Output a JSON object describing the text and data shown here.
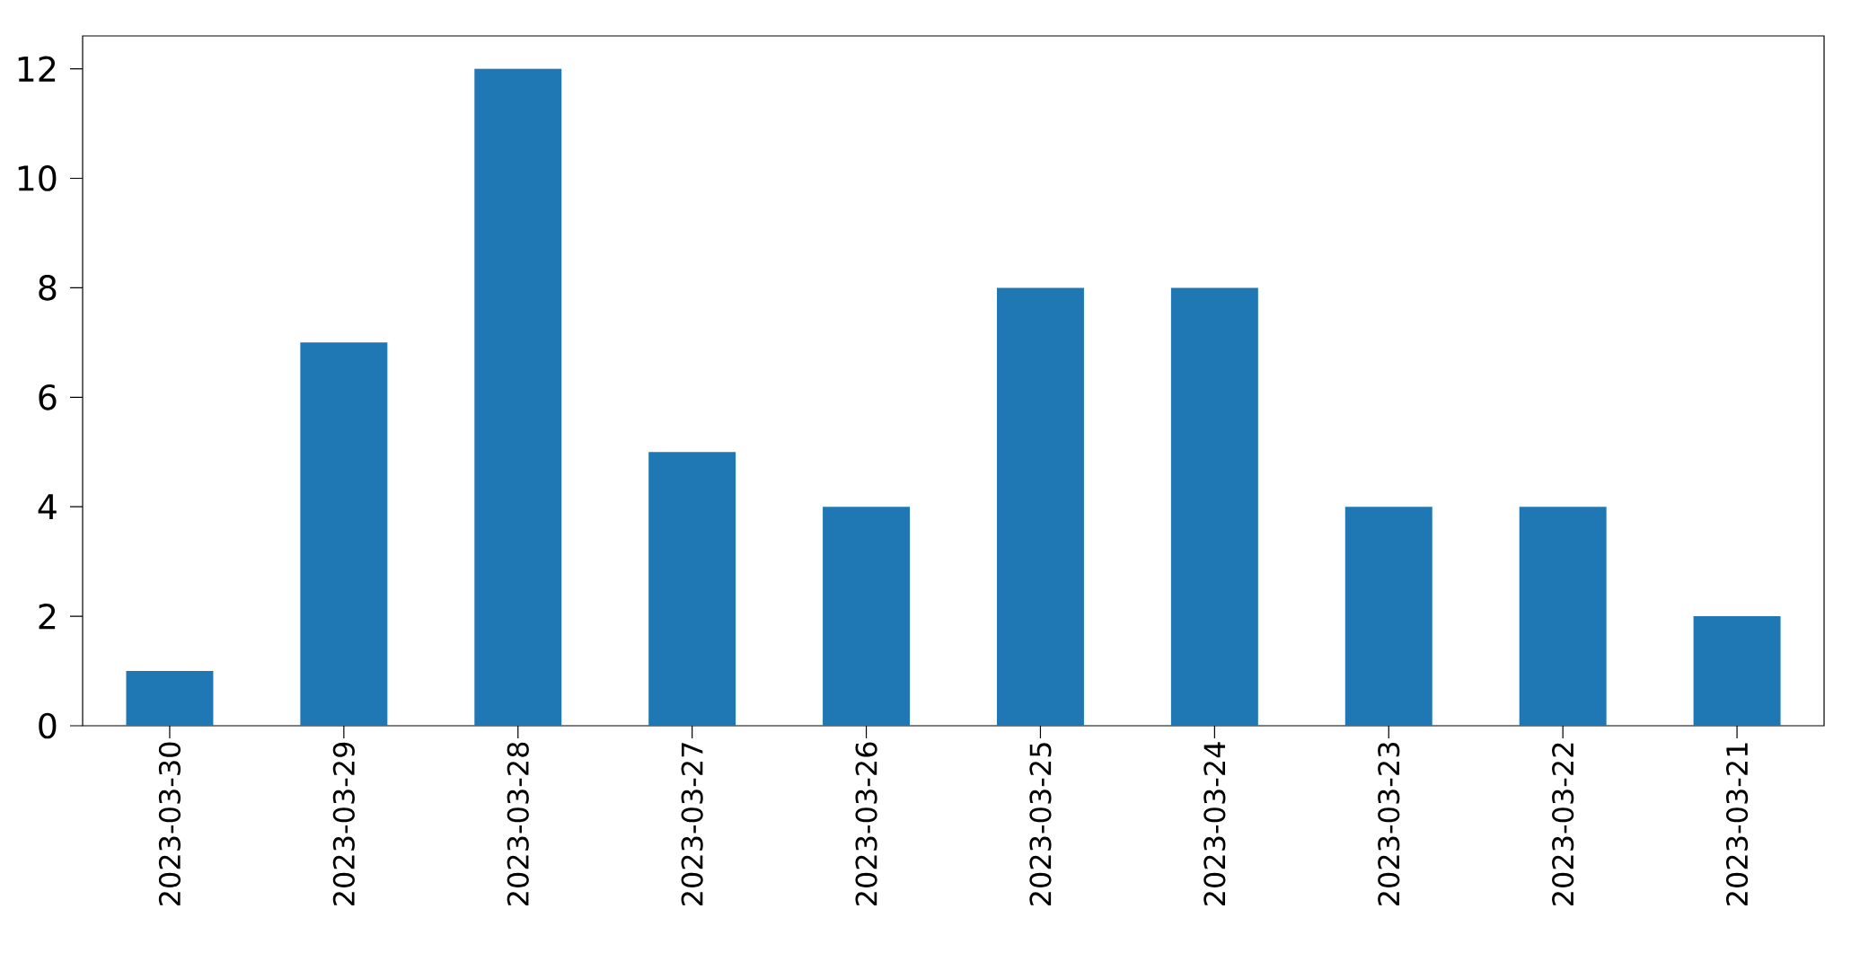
{
  "chart_data": {
    "type": "bar",
    "categories": [
      "2023-03-30",
      "2023-03-29",
      "2023-03-28",
      "2023-03-27",
      "2023-03-26",
      "2023-03-25",
      "2023-03-24",
      "2023-03-23",
      "2023-03-22",
      "2023-03-21"
    ],
    "values": [
      1,
      7,
      12,
      5,
      4,
      8,
      8,
      4,
      4,
      2
    ],
    "color": "#1f77b4",
    "ylim": [
      0,
      12.6
    ],
    "yticks": [
      0,
      2,
      4,
      6,
      8,
      10,
      12
    ]
  }
}
